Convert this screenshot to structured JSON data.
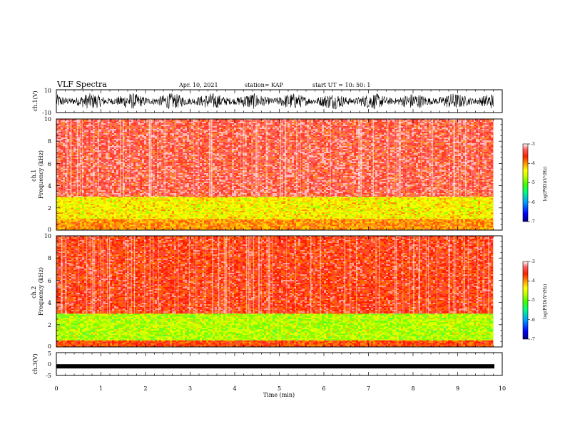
{
  "header": {
    "title": "VLF Spectra",
    "date": "Apr. 10, 2021",
    "station": "station= KAP",
    "start": "start  UT =   10: 50: 1"
  },
  "colors": {
    "waveform": "#000000",
    "colormap": [
      "#000080",
      "#0000ff",
      "#00a0ff",
      "#00ff80",
      "#40ff00",
      "#c0ff00",
      "#ffff00",
      "#ffa000",
      "#ff2000",
      "#ff6060",
      "#ffffff"
    ]
  },
  "chart_data": [
    {
      "type": "line",
      "ylabel": "ch.1(V)",
      "ylim": [
        -10,
        10
      ],
      "yticks": [
        "10",
        "-10"
      ],
      "xlim": [
        0,
        10
      ],
      "description": "dense waveform, amplitude about ±7 V"
    },
    {
      "type": "heatmap",
      "ylabel": "ch.1\nFrequency  (kHz)",
      "ylim": [
        0,
        10
      ],
      "yticks": [
        "0",
        "2",
        "4",
        "6",
        "8",
        "10"
      ],
      "xlim": [
        0,
        9.8
      ],
      "colorbar": {
        "label": "log(PSD)(V²/Hz)",
        "range": [
          -7,
          -3
        ],
        "ticks": [
          "-3",
          "-4",
          "-5",
          "-6",
          "-7"
        ]
      },
      "bands": [
        {
          "from_khz": 0,
          "to_khz": 1.0,
          "level": -4.1
        },
        {
          "from_khz": 1.0,
          "to_khz": 3.0,
          "level": -4.6
        },
        {
          "from_khz": 3.0,
          "to_khz": 10,
          "level": -3.6
        }
      ]
    },
    {
      "type": "heatmap",
      "ylabel": "ch.2\nFrequency  (kHz)",
      "ylim": [
        0,
        10
      ],
      "yticks": [
        "0",
        "2",
        "4",
        "6",
        "8",
        "10"
      ],
      "xlim": [
        0,
        9.8
      ],
      "colorbar": {
        "label": "log(PSD)(V²/Hz)",
        "range": [
          -7,
          -3
        ],
        "ticks": [
          "-3",
          "-4",
          "-5",
          "-6",
          "-7"
        ]
      },
      "bands": [
        {
          "from_khz": 0,
          "to_khz": 0.6,
          "level": -4.0
        },
        {
          "from_khz": 0.6,
          "to_khz": 3.0,
          "level": -5.0
        },
        {
          "from_khz": 3.0,
          "to_khz": 10,
          "level": -3.7
        }
      ]
    },
    {
      "type": "line",
      "ylabel": "ch.3(V)",
      "ylim": [
        -5,
        5
      ],
      "yticks": [
        "5",
        "0",
        "-5"
      ],
      "xlim": [
        0,
        10
      ],
      "description": "flat band near -1 V"
    }
  ],
  "xaxis": {
    "label": "Time  (min)",
    "ticks": [
      "0",
      "1",
      "2",
      "3",
      "4",
      "5",
      "6",
      "7",
      "8",
      "9",
      "10"
    ]
  }
}
